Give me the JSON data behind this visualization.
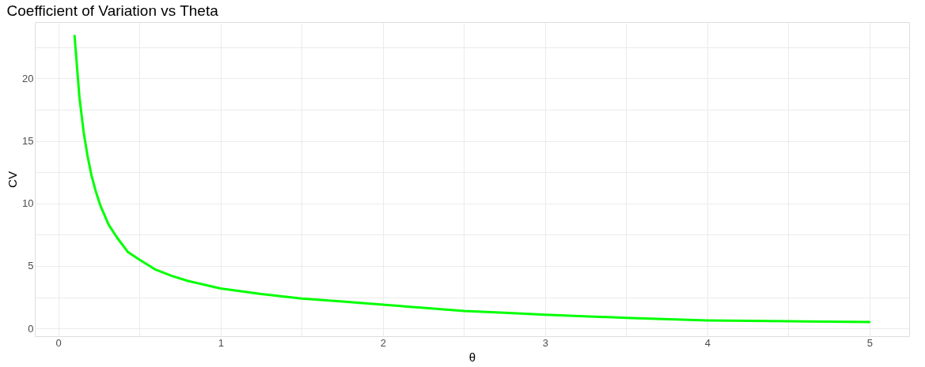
{
  "chart_data": {
    "type": "line",
    "title": "Coefficient of Variation vs Theta",
    "xlabel": "θ",
    "ylabel": "CV",
    "x": [
      0.1,
      0.13,
      0.156,
      0.18,
      0.205,
      0.23,
      0.26,
      0.31,
      0.36,
      0.43,
      0.5,
      0.6,
      0.7,
      0.8,
      0.9,
      1.0,
      1.25,
      1.5,
      1.75,
      2.0,
      2.25,
      2.5,
      2.75,
      3.0,
      3.5,
      4.0,
      4.5,
      5.0
    ],
    "series": [
      {
        "color": "#00ff00",
        "values": [
          23.4,
          18.5,
          15.7,
          13.8,
          12.2,
          11.0,
          9.8,
          8.3,
          7.3,
          6.1,
          5.5,
          4.7,
          4.2,
          3.8,
          3.5,
          3.2,
          2.75,
          2.4,
          2.15,
          1.9,
          1.65,
          1.4,
          1.25,
          1.1,
          0.85,
          0.65,
          0.58,
          0.52
        ]
      }
    ],
    "xlim": [
      -0.145,
      5.245
    ],
    "ylim": [
      -0.62,
      24.5
    ],
    "xticks": [
      0,
      {
        "value": 0.5,
        "label": null
      },
      1,
      {
        "value": 1.5,
        "label": null
      },
      2,
      {
        "value": 2.5,
        "label": null
      },
      3,
      {
        "value": 3.5,
        "label": null
      },
      4,
      {
        "value": 4.5,
        "label": null
      },
      5
    ],
    "yticks": [
      0,
      {
        "value": 2.5,
        "label": null
      },
      5,
      {
        "value": 7.5,
        "label": null
      },
      10,
      {
        "value": 12.5,
        "label": null
      },
      15,
      {
        "value": 17.5,
        "label": null
      },
      20,
      {
        "value": 22.5,
        "label": null
      }
    ],
    "grid": true,
    "marker": "none",
    "line_style": "solid"
  }
}
